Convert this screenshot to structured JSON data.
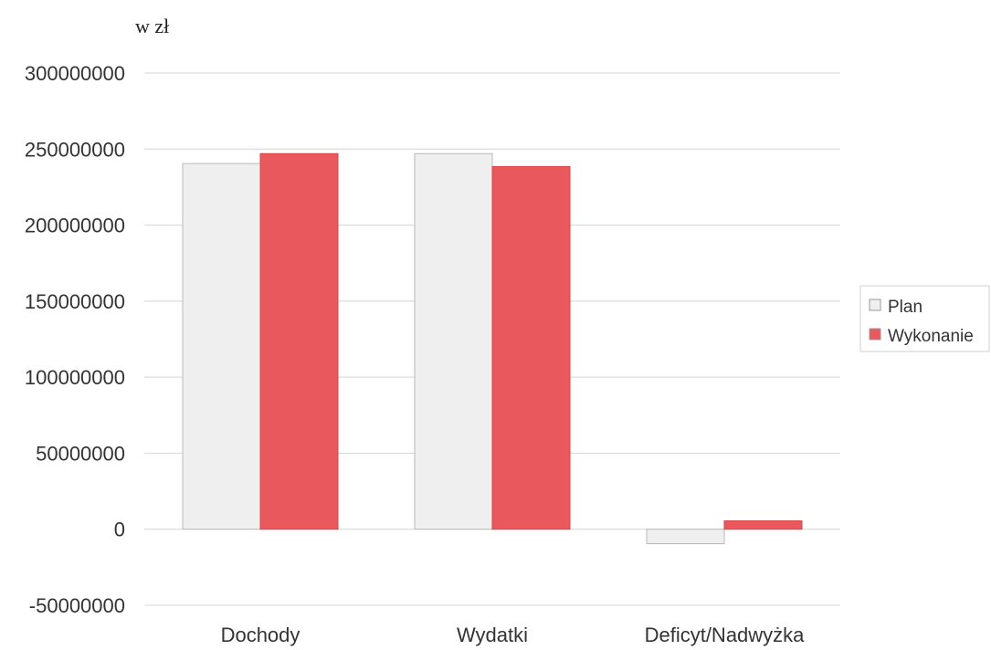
{
  "chart_data": {
    "type": "bar",
    "unit_label": "w zł",
    "categories": [
      "Dochody",
      "Wydatki",
      "Deficyt/Nadwyżka"
    ],
    "series": [
      {
        "name": "Plan",
        "color": "#efefef",
        "values": [
          240500000,
          247000000,
          -9500000
        ]
      },
      {
        "name": "Wykonanie",
        "color": "#e8585c",
        "values": [
          247000000,
          238500000,
          5500000
        ]
      }
    ],
    "ylim": [
      -50000000,
      300000000
    ],
    "yticks": [
      "300000000",
      "250000000",
      "200000000",
      "150000000",
      "100000000",
      "50000000",
      "0",
      "-50000000"
    ],
    "grid": true,
    "legend": "right"
  }
}
